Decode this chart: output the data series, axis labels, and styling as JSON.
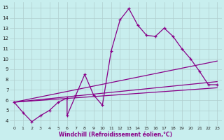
{
  "xlabel": "Windchill (Refroidissement éolien,°C)",
  "background_color": "#c8eeee",
  "line_color": "#880088",
  "xlim": [
    -0.5,
    23.5
  ],
  "ylim": [
    3.5,
    15.5
  ],
  "xticks": [
    0,
    1,
    2,
    3,
    4,
    5,
    6,
    7,
    8,
    9,
    10,
    11,
    12,
    13,
    14,
    15,
    16,
    17,
    18,
    19,
    20,
    21,
    22,
    23
  ],
  "yticks": [
    4,
    5,
    6,
    7,
    8,
    9,
    10,
    11,
    12,
    13,
    14,
    15
  ],
  "grid_color": "#b0cece",
  "main_series": [
    [
      0,
      5.8
    ],
    [
      1,
      4.8
    ],
    [
      2,
      3.9
    ],
    [
      3,
      4.5
    ],
    [
      4,
      5.0
    ],
    [
      5,
      5.8
    ],
    [
      6,
      6.2
    ],
    [
      6,
      4.5
    ],
    [
      7,
      6.5
    ],
    [
      8,
      8.5
    ],
    [
      9,
      6.5
    ],
    [
      10,
      5.5
    ],
    [
      11,
      10.8
    ],
    [
      12,
      13.8
    ],
    [
      13,
      14.9
    ],
    [
      14,
      13.3
    ],
    [
      15,
      12.3
    ],
    [
      16,
      12.2
    ],
    [
      17,
      13.0
    ],
    [
      18,
      12.2
    ],
    [
      19,
      11.0
    ],
    [
      20,
      10.0
    ],
    [
      21,
      8.8
    ],
    [
      22,
      7.5
    ],
    [
      23,
      7.5
    ]
  ],
  "ref_lines": [
    [
      [
        0,
        5.8
      ],
      [
        23,
        9.8
      ]
    ],
    [
      [
        0,
        5.8
      ],
      [
        23,
        7.8
      ]
    ],
    [
      [
        0,
        5.8
      ],
      [
        23,
        7.2
      ]
    ]
  ]
}
